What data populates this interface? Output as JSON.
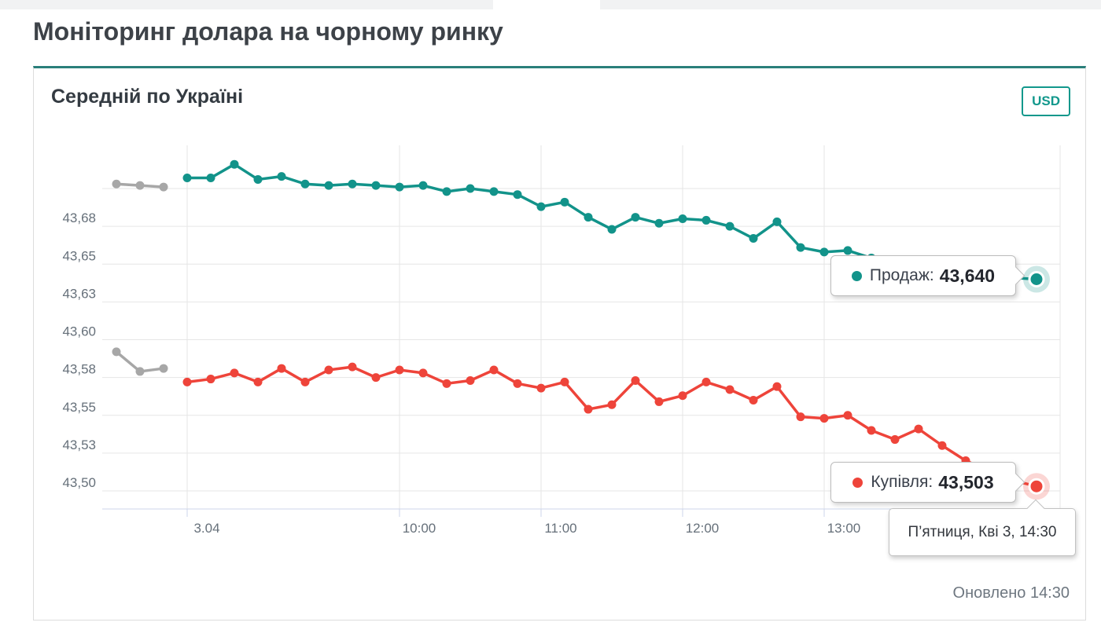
{
  "page": {
    "title": "Моніторинг долара на чорному ринку",
    "updated": "Оновлено 14:30"
  },
  "card": {
    "title": "Середній по Україні",
    "currency": "USD"
  },
  "callouts": {
    "sell": {
      "text": "Продаж:",
      "value": "43,640",
      "color": "#12938a"
    },
    "buy": {
      "text": "Купівля:",
      "value": "43,503",
      "color": "#ee443a"
    },
    "datetime": "П’ятниця, Кві 3, 14:30"
  },
  "colors": {
    "accent_teal": "#12938a",
    "accent_red": "#ee443a",
    "previous_day_gray": "#a7a7a7",
    "grid": "#e6e6e6",
    "axis": "#ccd6eb",
    "axis_label": "#66707a",
    "card_top_border": "#2a7f7a"
  },
  "chart_data": {
    "type": "line",
    "title": "Середній по Україні",
    "xlabel": "",
    "ylabel": "",
    "grid": true,
    "legend_position": "none",
    "x_range": [
      "08:00",
      "14:40"
    ],
    "ylim": [
      43.488,
      43.728
    ],
    "x_ticks": [
      {
        "label": "3.04",
        "time": "08:30"
      },
      {
        "label": "10:00",
        "time": "10:00"
      },
      {
        "label": "11:00",
        "time": "11:00"
      },
      {
        "label": "12:00",
        "time": "12:00"
      },
      {
        "label": "13:00",
        "time": "13:00"
      }
    ],
    "y_ticks": [
      {
        "value": 43.7,
        "label": ""
      },
      {
        "value": 43.675,
        "label": "43,68"
      },
      {
        "value": 43.65,
        "label": "43,65"
      },
      {
        "value": 43.625,
        "label": "43,63"
      },
      {
        "value": 43.6,
        "label": "43,60"
      },
      {
        "value": 43.575,
        "label": "43,58"
      },
      {
        "value": 43.55,
        "label": "43,55"
      },
      {
        "value": 43.525,
        "label": "43,53"
      },
      {
        "value": 43.5,
        "label": "43,50"
      }
    ],
    "series": [
      {
        "id": "sell-previous-day",
        "color": "#a7a7a7",
        "end_marker": false,
        "times": [
          "08:00",
          "08:10",
          "08:20"
        ],
        "values": [
          43.703,
          43.702,
          43.701
        ]
      },
      {
        "id": "buy-previous-day",
        "color": "#a7a7a7",
        "end_marker": false,
        "times": [
          "08:00",
          "08:10",
          "08:20"
        ],
        "values": [
          43.592,
          43.579,
          43.581
        ]
      },
      {
        "id": "sell",
        "name": "Продаж",
        "color": "#12938a",
        "end_marker": true,
        "last_value_label": "43,640",
        "times": [
          "08:30",
          "08:40",
          "08:50",
          "09:00",
          "09:10",
          "09:20",
          "09:30",
          "09:40",
          "09:50",
          "10:00",
          "10:10",
          "10:20",
          "10:30",
          "10:40",
          "10:50",
          "11:00",
          "11:10",
          "11:20",
          "11:30",
          "11:40",
          "11:50",
          "12:00",
          "12:10",
          "12:20",
          "12:30",
          "12:40",
          "12:50",
          "13:00",
          "13:10",
          "13:20",
          "13:30",
          "13:40",
          "13:50",
          "14:00",
          "14:10",
          "14:20",
          "14:30"
        ],
        "values": [
          43.707,
          43.707,
          43.716,
          43.706,
          43.708,
          43.703,
          43.702,
          43.703,
          43.702,
          43.701,
          43.702,
          43.698,
          43.7,
          43.698,
          43.696,
          43.688,
          43.691,
          43.681,
          43.673,
          43.681,
          43.677,
          43.68,
          43.679,
          43.675,
          43.667,
          43.678,
          43.661,
          43.658,
          43.659,
          43.654,
          43.651,
          43.648,
          43.646,
          43.644,
          43.642,
          43.641,
          43.64
        ]
      },
      {
        "id": "buy",
        "name": "Купівля",
        "color": "#ee443a",
        "end_marker": true,
        "last_value_label": "43,503",
        "times": [
          "08:30",
          "08:40",
          "08:50",
          "09:00",
          "09:10",
          "09:20",
          "09:30",
          "09:40",
          "09:50",
          "10:00",
          "10:10",
          "10:20",
          "10:30",
          "10:40",
          "10:50",
          "11:00",
          "11:10",
          "11:20",
          "11:30",
          "11:40",
          "11:50",
          "12:00",
          "12:10",
          "12:20",
          "12:30",
          "12:40",
          "12:50",
          "13:00",
          "13:10",
          "13:20",
          "13:30",
          "13:40",
          "13:50",
          "14:00",
          "14:10",
          "14:20",
          "14:30"
        ],
        "values": [
          43.572,
          43.574,
          43.578,
          43.572,
          43.581,
          43.572,
          43.58,
          43.582,
          43.575,
          43.58,
          43.578,
          43.571,
          43.573,
          43.58,
          43.571,
          43.568,
          43.572,
          43.554,
          43.557,
          43.573,
          43.559,
          43.563,
          43.572,
          43.567,
          43.56,
          43.569,
          43.549,
          43.548,
          43.55,
          43.54,
          43.534,
          43.541,
          43.53,
          43.52,
          43.513,
          43.507,
          43.503
        ]
      }
    ]
  }
}
